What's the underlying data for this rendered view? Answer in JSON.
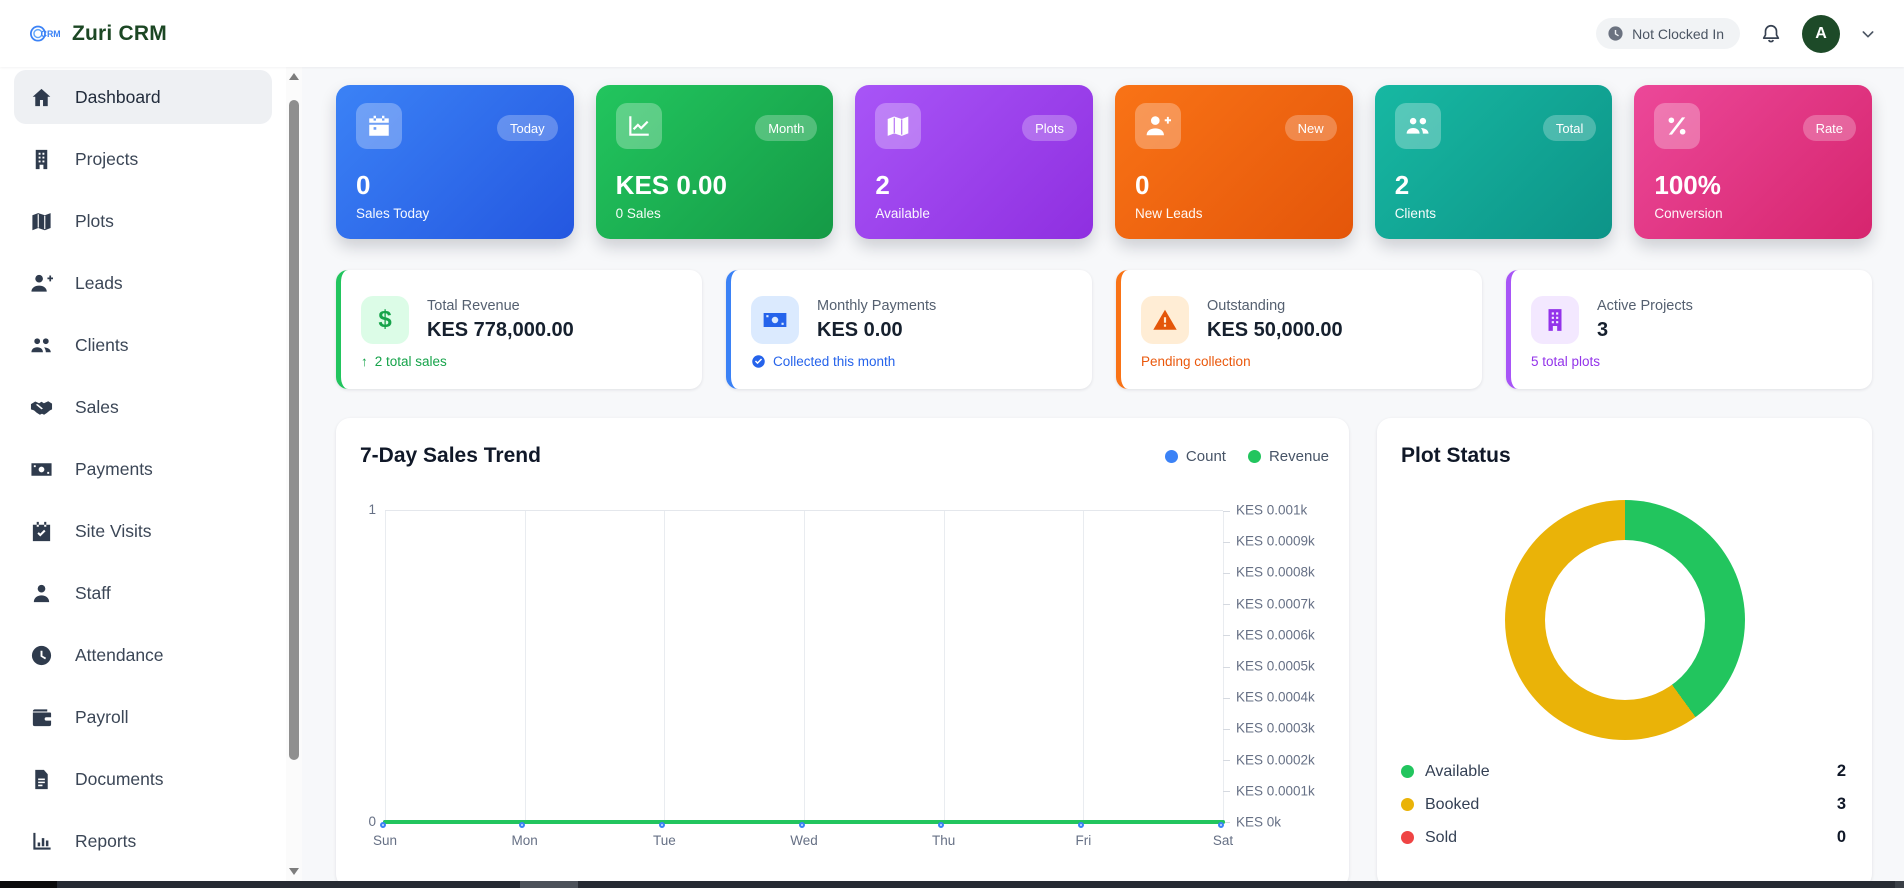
{
  "header": {
    "app_title": "Zuri CRM",
    "clock_status": "Not Clocked In",
    "avatar_initial": "A"
  },
  "sidebar": {
    "items": [
      {
        "label": "Dashboard",
        "icon": "home-icon",
        "active": true
      },
      {
        "label": "Projects",
        "icon": "building-icon",
        "active": false
      },
      {
        "label": "Plots",
        "icon": "map-icon",
        "active": false
      },
      {
        "label": "Leads",
        "icon": "user-plus-icon",
        "active": false
      },
      {
        "label": "Clients",
        "icon": "users-icon",
        "active": false
      },
      {
        "label": "Sales",
        "icon": "handshake-icon",
        "active": false
      },
      {
        "label": "Payments",
        "icon": "banknote-icon",
        "active": false
      },
      {
        "label": "Site Visits",
        "icon": "calendar-check-icon",
        "active": false
      },
      {
        "label": "Staff",
        "icon": "user-icon",
        "active": false
      },
      {
        "label": "Attendance",
        "icon": "clock-icon",
        "active": false
      },
      {
        "label": "Payroll",
        "icon": "wallet-icon",
        "active": false
      },
      {
        "label": "Documents",
        "icon": "document-icon",
        "active": false
      },
      {
        "label": "Reports",
        "icon": "bar-chart-icon",
        "active": false
      }
    ]
  },
  "stat_cards": [
    {
      "badge": "Today",
      "value": "0",
      "label": "Sales Today",
      "icon": "calendar-icon",
      "color": "#2563eb"
    },
    {
      "badge": "Month",
      "value": "KES 0.00",
      "label": "0 Sales",
      "icon": "line-chart-icon",
      "color": "#16a34a"
    },
    {
      "badge": "Plots",
      "value": "2",
      "label": "Available",
      "icon": "map-icon",
      "color": "#9333ea"
    },
    {
      "badge": "New",
      "value": "0",
      "label": "New Leads",
      "icon": "user-plus-icon",
      "color": "#ea580c"
    },
    {
      "badge": "Total",
      "value": "2",
      "label": "Clients",
      "icon": "users-icon",
      "color": "#0d9488"
    },
    {
      "badge": "Rate",
      "value": "100%",
      "label": "Conversion",
      "icon": "percent-icon",
      "color": "#db2777"
    }
  ],
  "summary_cards": [
    {
      "title": "Total Revenue",
      "value": "KES 778,000.00",
      "footer": "2 total sales",
      "footer_icon": "arrow-up-icon",
      "icon": "dollar-icon",
      "accent": "#22c55e"
    },
    {
      "title": "Monthly Payments",
      "value": "KES 0.00",
      "footer": "Collected this month",
      "footer_icon": "check-circle-icon",
      "icon": "banknote-icon",
      "accent": "#3b82f6"
    },
    {
      "title": "Outstanding",
      "value": "KES 50,000.00",
      "footer": "Pending collection",
      "footer_icon": "",
      "icon": "warning-icon",
      "accent": "#f97316"
    },
    {
      "title": "Active Projects",
      "value": "3",
      "footer": "5 total plots",
      "footer_icon": "",
      "icon": "building-icon",
      "accent": "#a855f7"
    }
  ],
  "chart_data": [
    {
      "type": "line",
      "title": "7-Day Sales Trend",
      "x": [
        "Sun",
        "Mon",
        "Tue",
        "Wed",
        "Thu",
        "Fri",
        "Sat"
      ],
      "series": [
        {
          "name": "Count",
          "color": "#3b82f6",
          "values": [
            0,
            0,
            0,
            0,
            0,
            0,
            0
          ]
        },
        {
          "name": "Revenue",
          "color": "#22c55e",
          "values": [
            0,
            0,
            0,
            0,
            0,
            0,
            0
          ]
        }
      ],
      "left_axis": {
        "min": 0,
        "max": 1,
        "labels": [
          "1",
          "0"
        ]
      },
      "right_axis_labels": [
        "KES 0.001k",
        "KES 0.0009k",
        "KES 0.0008k",
        "KES 0.0007k",
        "KES 0.0006k",
        "KES 0.0005k",
        "KES 0.0004k",
        "KES 0.0003k",
        "KES 0.0002k",
        "KES 0.0001k",
        "KES 0k"
      ],
      "legend_position": "top-right",
      "grid": true
    },
    {
      "type": "donut",
      "title": "Plot Status",
      "labels": [
        "Available",
        "Booked",
        "Sold"
      ],
      "values": [
        2,
        3,
        0
      ],
      "colors": [
        "#22c55e",
        "#eab308",
        "#ef4444"
      ]
    }
  ]
}
